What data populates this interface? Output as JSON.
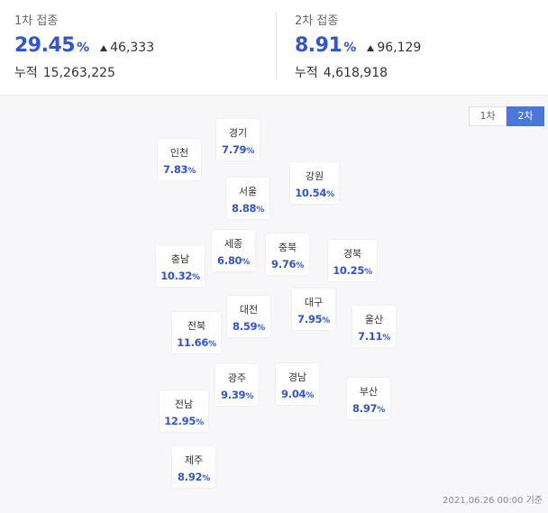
{
  "dose1": {
    "label": "1차 접종",
    "pct": "29.45",
    "unit": "%",
    "delta": "46,333",
    "cum_label": "누적",
    "cum_value": "15,263,225"
  },
  "dose2": {
    "label": "2차 접종",
    "pct": "8.91",
    "unit": "%",
    "delta": "96,129",
    "cum_label": "누적",
    "cum_value": "4,618,918"
  },
  "toggle": {
    "first": "1차",
    "second": "2차",
    "active": "second"
  },
  "regions": {
    "incheon": {
      "name": "인천",
      "value": "7.83"
    },
    "gyeonggi": {
      "name": "경기",
      "value": "7.79"
    },
    "gangwon": {
      "name": "강원",
      "value": "10.54"
    },
    "seoul": {
      "name": "서울",
      "value": "8.88"
    },
    "sejong": {
      "name": "세종",
      "value": "6.80"
    },
    "chungbuk": {
      "name": "충북",
      "value": "9.76"
    },
    "gyeongbuk": {
      "name": "경북",
      "value": "10.25"
    },
    "chungnam": {
      "name": "충남",
      "value": "10.32"
    },
    "daegu": {
      "name": "대구",
      "value": "7.95"
    },
    "daejeon": {
      "name": "대전",
      "value": "8.59"
    },
    "ulsan": {
      "name": "울산",
      "value": "7.11"
    },
    "jeonbuk": {
      "name": "전북",
      "value": "11.66"
    },
    "gwangju": {
      "name": "광주",
      "value": "9.39"
    },
    "gyeongnam": {
      "name": "경남",
      "value": "9.04"
    },
    "busan": {
      "name": "부산",
      "value": "8.97"
    },
    "jeonnam": {
      "name": "전남",
      "value": "12.95"
    },
    "jeju": {
      "name": "제주",
      "value": "8.92"
    }
  },
  "region_unit": "%",
  "timestamp": "2021.06.26 00:00 기준"
}
